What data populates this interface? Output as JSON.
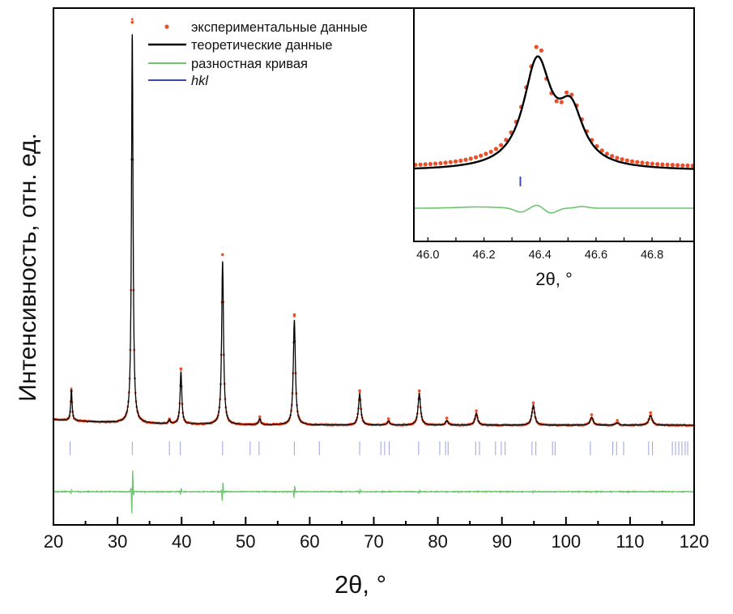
{
  "chart_data": [
    {
      "type": "line",
      "panel": "main",
      "xlabel": "2θ, °",
      "ylabel": "Интенсивность, отн. ед.",
      "xlim": [
        20,
        120
      ],
      "xticks": [
        20,
        30,
        40,
        50,
        60,
        70,
        80,
        90,
        100,
        110,
        120
      ],
      "yticks": [],
      "ylim": [
        0,
        100
      ],
      "grid": false,
      "legend": {
        "placement": "top-center",
        "entries": [
          {
            "label": "экспериментальные данные",
            "marker": "dot",
            "color": "#e8502a"
          },
          {
            "label": "теоретические данные",
            "marker": "line",
            "color": "#000000"
          },
          {
            "label": "разностная кривая",
            "marker": "line",
            "color": "#6cc46c"
          },
          {
            "label": "hkl",
            "marker": "line",
            "color": "#3b4aa8"
          }
        ]
      },
      "peaks": [
        {
          "x": 22.8,
          "y": 8
        },
        {
          "x": 32.3,
          "y": 100
        },
        {
          "x": 38.1,
          "y": 1
        },
        {
          "x": 39.9,
          "y": 13.5
        },
        {
          "x": 46.4,
          "y": 42
        },
        {
          "x": 52.2,
          "y": 1.5
        },
        {
          "x": 57.6,
          "y": 27
        },
        {
          "x": 67.8,
          "y": 8
        },
        {
          "x": 72.3,
          "y": 1
        },
        {
          "x": 77.1,
          "y": 8
        },
        {
          "x": 81.4,
          "y": 1.2
        },
        {
          "x": 86.0,
          "y": 3
        },
        {
          "x": 94.9,
          "y": 5
        },
        {
          "x": 104.0,
          "y": 2
        },
        {
          "x": 108.0,
          "y": 0.6
        },
        {
          "x": 113.2,
          "y": 2.5
        }
      ],
      "hkl_positions": [
        22.6,
        32.3,
        38.1,
        39.8,
        46.4,
        50.7,
        52.1,
        57.6,
        61.5,
        67.8,
        71.1,
        71.7,
        72.4,
        77.0,
        80.3,
        81.2,
        81.6,
        85.9,
        86.5,
        89.0,
        89.9,
        90.5,
        94.7,
        95.3,
        97.9,
        98.3,
        103.8,
        107.3,
        107.9,
        109.0,
        112.9,
        113.5,
        116.6,
        117.1,
        117.6,
        118.1,
        118.6,
        119.0
      ]
    },
    {
      "type": "line",
      "panel": "inset",
      "xlabel": "2θ, °",
      "xlim": [
        45.95,
        46.95
      ],
      "xticks": [
        "46.0",
        "46.2",
        "46.4",
        "46.6",
        "46.8"
      ],
      "grid": false,
      "peaks": [
        {
          "x": 46.39,
          "y": 1.0
        },
        {
          "x": 46.51,
          "y": 0.5
        }
      ],
      "hkl_positions": [
        46.33
      ]
    }
  ],
  "colors": {
    "experimental": "#e8502a",
    "calculated": "#000000",
    "difference": "#6cc46c",
    "hkl": "#3b4aa8"
  }
}
